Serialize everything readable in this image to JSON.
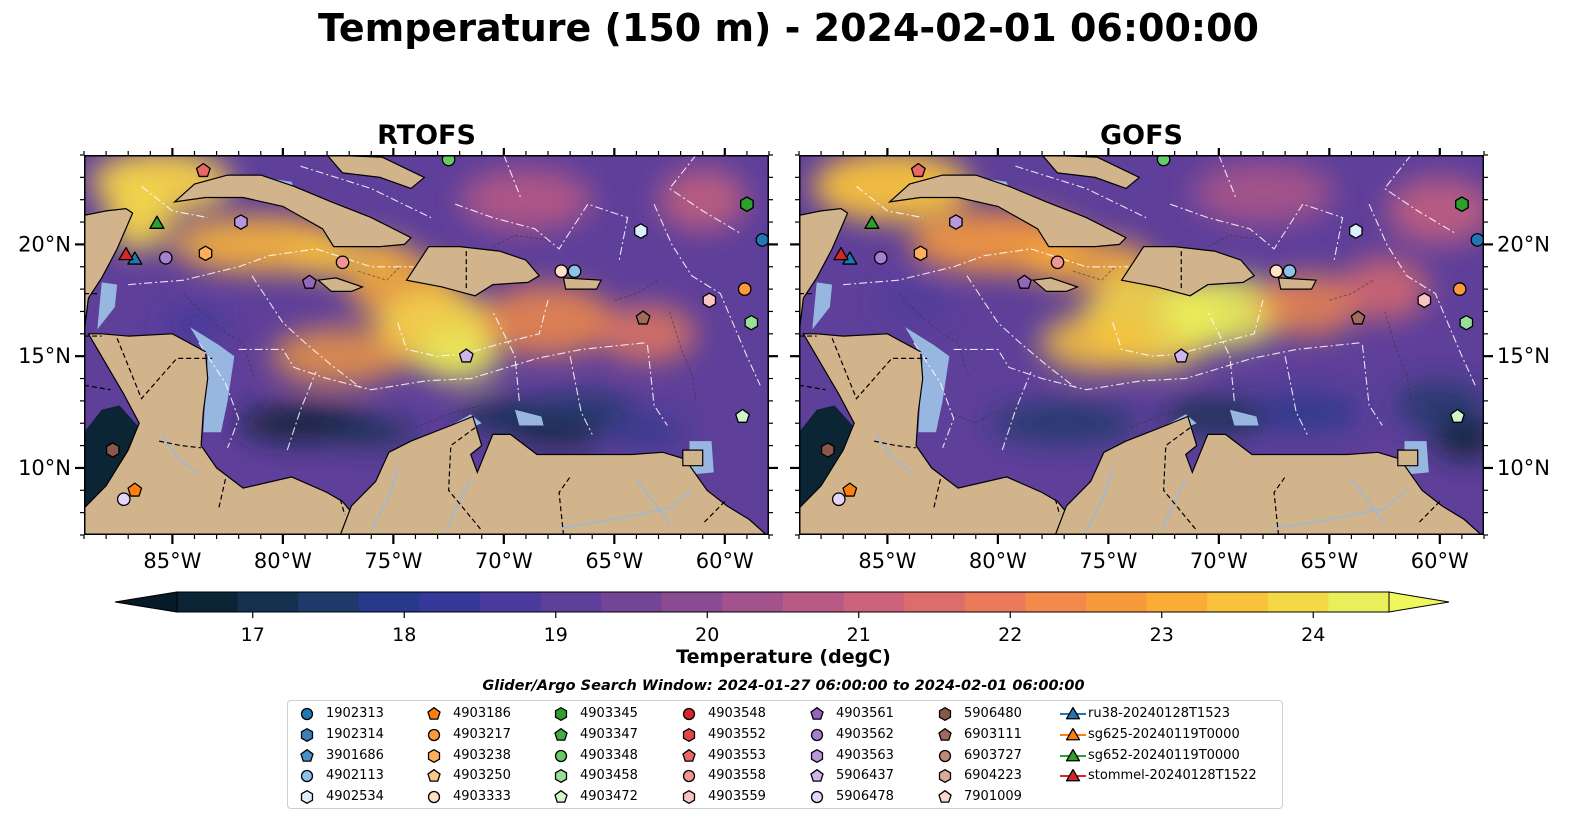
{
  "title": "Temperature (150 m) - 2024-02-01 06:00:00",
  "panels": [
    {
      "id": "rtofs",
      "title": "RTOFS"
    },
    {
      "id": "gofs",
      "title": "GOFS"
    }
  ],
  "axes": {
    "lon_ticks": [
      "85°W",
      "80°W",
      "75°W",
      "70°W",
      "65°W",
      "60°W"
    ],
    "lat_ticks": [
      "20°N",
      "15°N",
      "10°N"
    ],
    "lon_range": [
      -89.0,
      -58.0
    ],
    "lat_range": [
      7.0,
      24.0
    ]
  },
  "colorbar": {
    "label": "Temperature (degC)",
    "ticks": [
      "17",
      "18",
      "19",
      "20",
      "21",
      "22",
      "23",
      "24"
    ],
    "range": [
      16.5,
      24.5
    ],
    "extend": "both",
    "colors": [
      "#0a2436",
      "#14304f",
      "#1d3a6a",
      "#27398a",
      "#36399a",
      "#4a3b9c",
      "#5e3f9a",
      "#744596",
      "#8a4b92",
      "#a2538d",
      "#b85a86",
      "#cc627c",
      "#dd6c6c",
      "#ea7a5a",
      "#f3894a",
      "#f79a3c",
      "#f9ad36",
      "#f8c23c",
      "#f5d848",
      "#e9ef5a"
    ]
  },
  "search_window": "Glider/Argo Search Window: 2024-01-27 06:00:00 to 2024-02-01 06:00:00",
  "legend": [
    {
      "label": "1902313",
      "marker": "circle",
      "color": "#1f77b4"
    },
    {
      "label": "1902314",
      "marker": "hexagon",
      "color": "#3a7fb8"
    },
    {
      "label": "3901686",
      "marker": "pentagon",
      "color": "#4a90c8"
    },
    {
      "label": "4902113",
      "marker": "circle",
      "color": "#8cc3e8"
    },
    {
      "label": "4902534",
      "marker": "hexagon",
      "color": "#dcefff"
    },
    {
      "label": "4903186",
      "marker": "pentagon",
      "color": "#ff7f0e"
    },
    {
      "label": "4903217",
      "marker": "circle",
      "color": "#ff9a3c"
    },
    {
      "label": "4903238",
      "marker": "hexagon",
      "color": "#ffae5c"
    },
    {
      "label": "4903250",
      "marker": "pentagon",
      "color": "#ffc58c"
    },
    {
      "label": "4903333",
      "marker": "circle",
      "color": "#ffe2c4"
    },
    {
      "label": "4903345",
      "marker": "hexagon",
      "color": "#2ca02c"
    },
    {
      "label": "4903347",
      "marker": "pentagon",
      "color": "#3cb043"
    },
    {
      "label": "4903348",
      "marker": "circle",
      "color": "#66cc66"
    },
    {
      "label": "4903458",
      "marker": "hexagon",
      "color": "#98e098"
    },
    {
      "label": "4903472",
      "marker": "pentagon",
      "color": "#cff5c8"
    },
    {
      "label": "4903548",
      "marker": "circle",
      "color": "#d62728"
    },
    {
      "label": "4903552",
      "marker": "hexagon",
      "color": "#e04848"
    },
    {
      "label": "4903553",
      "marker": "pentagon",
      "color": "#e86868"
    },
    {
      "label": "4903558",
      "marker": "circle",
      "color": "#f29494"
    },
    {
      "label": "4903559",
      "marker": "hexagon",
      "color": "#f9c4c4"
    },
    {
      "label": "4903561",
      "marker": "pentagon",
      "color": "#9467bd"
    },
    {
      "label": "4903562",
      "marker": "circle",
      "color": "#a67fd0"
    },
    {
      "label": "4903563",
      "marker": "hexagon",
      "color": "#b897dc"
    },
    {
      "label": "5906437",
      "marker": "pentagon",
      "color": "#cfb5ec"
    },
    {
      "label": "5906478",
      "marker": "circle",
      "color": "#e7d4fb"
    },
    {
      "label": "5906480",
      "marker": "hexagon",
      "color": "#8c564b"
    },
    {
      "label": "6903111",
      "marker": "pentagon",
      "color": "#a06b5c"
    },
    {
      "label": "6903727",
      "marker": "circle",
      "color": "#c08878"
    },
    {
      "label": "6904223",
      "marker": "hexagon",
      "color": "#dcaa9c"
    },
    {
      "label": "7901009",
      "marker": "pentagon",
      "color": "#fbd9d0"
    },
    {
      "label": "ru38-20240128T1523",
      "marker": "triangle-line",
      "color": "#1f77b4"
    },
    {
      "label": "sg625-20240119T0000",
      "marker": "triangle-line",
      "color": "#ff7f0e"
    },
    {
      "label": "sg652-20240119T0000",
      "marker": "triangle-line",
      "color": "#2ca02c"
    },
    {
      "label": "stommel-20240128T1522",
      "marker": "triangle-line",
      "color": "#d62728"
    }
  ],
  "argo_floats": [
    {
      "id": "1902313",
      "lon": -58.3,
      "lat": 20.2
    },
    {
      "id": "1902314",
      "lon": -59.0,
      "lat": 21.8
    },
    {
      "id": "4902113",
      "lon": -66.8,
      "lat": 18.8
    },
    {
      "id": "4902534",
      "lon": -63.8,
      "lat": 20.6
    },
    {
      "id": "4903186",
      "lon": -86.7,
      "lat": 9.0
    },
    {
      "id": "4903217",
      "lon": -59.1,
      "lat": 18.0
    },
    {
      "id": "4903238",
      "lon": -83.5,
      "lat": 19.6
    },
    {
      "id": "4903333",
      "lon": -67.4,
      "lat": 18.8
    },
    {
      "id": "4903345",
      "lon": -59.0,
      "lat": 21.8
    },
    {
      "id": "4903348",
      "lon": -72.5,
      "lat": 23.8
    },
    {
      "id": "4903458",
      "lon": -58.8,
      "lat": 16.5
    },
    {
      "id": "4903472",
      "lon": -59.2,
      "lat": 12.3
    },
    {
      "id": "4903553",
      "lon": -83.6,
      "lat": 23.3
    },
    {
      "id": "4903558",
      "lon": -77.3,
      "lat": 19.2
    },
    {
      "id": "4903559",
      "lon": -60.7,
      "lat": 17.5
    },
    {
      "id": "4903561",
      "lon": -78.8,
      "lat": 18.3
    },
    {
      "id": "4903562",
      "lon": -85.3,
      "lat": 19.4
    },
    {
      "id": "4903563",
      "lon": -81.9,
      "lat": 21.0
    },
    {
      "id": "5906437",
      "lon": -71.7,
      "lat": 15.0
    },
    {
      "id": "5906478",
      "lon": -87.2,
      "lat": 8.6
    },
    {
      "id": "5906480",
      "lon": -87.7,
      "lat": 10.8
    },
    {
      "id": "6903111",
      "lon": -63.7,
      "lat": 16.7
    }
  ],
  "gliders": [
    {
      "id": "ru38-20240128T1523",
      "lon": -86.7,
      "lat": 19.3
    },
    {
      "id": "sg652-20240119T0000",
      "lon": -85.7,
      "lat": 20.9
    },
    {
      "id": "stommel-20240128T1522",
      "lon": -87.1,
      "lat": 19.5
    }
  ]
}
